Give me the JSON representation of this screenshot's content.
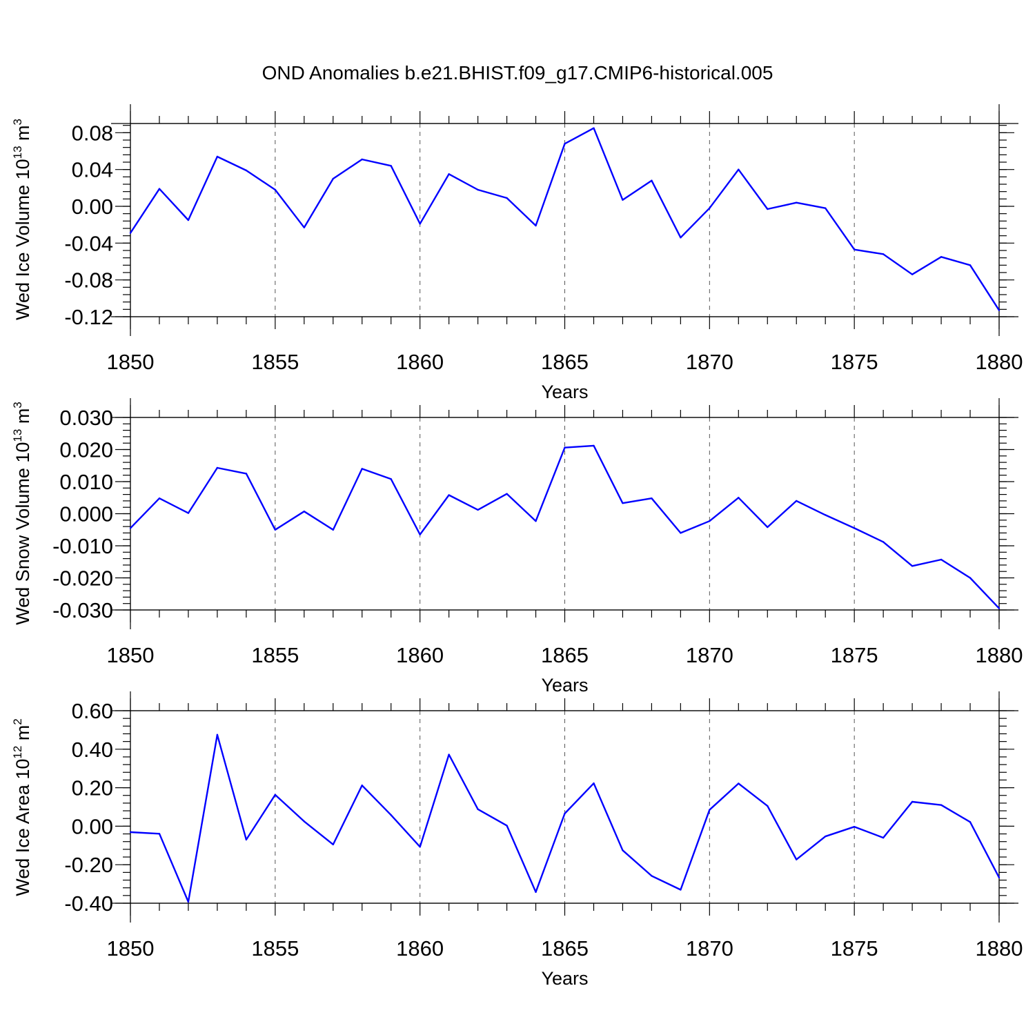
{
  "figure": {
    "title": "OND Anomalies b.e21.BHIST.f09_g17.CMIP6-historical.005"
  },
  "colors": {
    "line": "#0000ff",
    "axis": "#000000",
    "grid": "#555555"
  },
  "chart_data": [
    {
      "type": "line",
      "title": "",
      "xlabel": "Years",
      "ylabel": "Wed Ice Volume 10",
      "ylabel_exp": "13",
      "ylabel_unit": " m",
      "ylabel_unit_exp": "3",
      "xlim": [
        1850,
        1880
      ],
      "ylim": [
        -0.12,
        0.09
      ],
      "x_ticks": [
        1850,
        1855,
        1860,
        1865,
        1870,
        1875,
        1880
      ],
      "x_tick_labels": [
        "1850",
        "1855",
        "1860",
        "1865",
        "1870",
        "1875",
        "1880"
      ],
      "y_ticks": [
        -0.12,
        -0.08,
        -0.04,
        0.0,
        0.04,
        0.08
      ],
      "y_tick_labels": [
        "-0.12",
        "-0.08",
        "-0.04",
        "0.00",
        "0.04",
        "0.08"
      ],
      "grid": "dashed vertical at 5-year ticks",
      "x": [
        1850,
        1851,
        1852,
        1853,
        1854,
        1855,
        1856,
        1857,
        1858,
        1859,
        1860,
        1861,
        1862,
        1863,
        1864,
        1865,
        1866,
        1867,
        1868,
        1869,
        1870,
        1871,
        1872,
        1873,
        1874,
        1875,
        1876,
        1877,
        1878,
        1879,
        1880
      ],
      "series": [
        {
          "values": [
            -0.029,
            0.019,
            -0.015,
            0.054,
            0.039,
            0.018,
            -0.023,
            0.03,
            0.051,
            0.044,
            -0.019,
            0.035,
            0.018,
            0.009,
            -0.021,
            0.068,
            0.085,
            0.007,
            0.028,
            -0.034,
            -0.002,
            0.04,
            -0.003,
            0.004,
            -0.002,
            -0.047,
            -0.052,
            -0.074,
            -0.055,
            -0.064,
            -0.113
          ]
        }
      ]
    },
    {
      "type": "line",
      "title": "",
      "xlabel": "Years",
      "ylabel": "Wed Snow Volume 10",
      "ylabel_exp": "13",
      "ylabel_unit": " m",
      "ylabel_unit_exp": "3",
      "xlim": [
        1850,
        1880
      ],
      "ylim": [
        -0.03,
        0.03
      ],
      "x_ticks": [
        1850,
        1855,
        1860,
        1865,
        1870,
        1875,
        1880
      ],
      "x_tick_labels": [
        "1850",
        "1855",
        "1860",
        "1865",
        "1870",
        "1875",
        "1880"
      ],
      "y_ticks": [
        -0.03,
        -0.02,
        -0.01,
        0.0,
        0.01,
        0.02,
        0.03
      ],
      "y_tick_labels": [
        "-0.030",
        "-0.020",
        "-0.010",
        "0.000",
        "0.010",
        "0.020",
        "0.030"
      ],
      "grid": "dashed vertical at 5-year ticks",
      "x": [
        1850,
        1851,
        1852,
        1853,
        1854,
        1855,
        1856,
        1857,
        1858,
        1859,
        1860,
        1861,
        1862,
        1863,
        1864,
        1865,
        1866,
        1867,
        1868,
        1869,
        1870,
        1871,
        1872,
        1873,
        1874,
        1875,
        1876,
        1877,
        1878,
        1879,
        1880
      ],
      "series": [
        {
          "values": [
            -0.0045,
            0.0048,
            0.0002,
            0.0143,
            0.0125,
            -0.005,
            0.0007,
            -0.005,
            0.014,
            0.0108,
            -0.0065,
            0.0058,
            0.0012,
            0.0062,
            -0.0023,
            0.0206,
            0.0212,
            0.0033,
            0.0048,
            -0.006,
            -0.0023,
            0.005,
            -0.0042,
            0.004,
            -0.0004,
            -0.0045,
            -0.0088,
            -0.0163,
            -0.0143,
            -0.02,
            -0.0295
          ]
        }
      ]
    },
    {
      "type": "line",
      "title": "",
      "xlabel": "Years",
      "ylabel": "Wed Ice Area 10",
      "ylabel_exp": "12",
      "ylabel_unit": " m",
      "ylabel_unit_exp": "2",
      "xlim": [
        1850,
        1880
      ],
      "ylim": [
        -0.4,
        0.6
      ],
      "x_ticks": [
        1850,
        1855,
        1860,
        1865,
        1870,
        1875,
        1880
      ],
      "x_tick_labels": [
        "1850",
        "1855",
        "1860",
        "1865",
        "1870",
        "1875",
        "1880"
      ],
      "y_ticks": [
        -0.4,
        -0.2,
        0.0,
        0.2,
        0.4,
        0.6
      ],
      "y_tick_labels": [
        "-0.40",
        "-0.20",
        "0.00",
        "0.20",
        "0.40",
        "0.60"
      ],
      "grid": "dashed vertical at 5-year ticks",
      "x": [
        1850,
        1851,
        1852,
        1853,
        1854,
        1855,
        1856,
        1857,
        1858,
        1859,
        1860,
        1861,
        1862,
        1863,
        1864,
        1865,
        1866,
        1867,
        1868,
        1869,
        1870,
        1871,
        1872,
        1873,
        1874,
        1875,
        1876,
        1877,
        1878,
        1879,
        1880
      ],
      "series": [
        {
          "values": [
            -0.031,
            -0.039,
            -0.393,
            0.475,
            -0.07,
            0.163,
            0.025,
            -0.095,
            0.212,
            0.058,
            -0.107,
            0.372,
            0.088,
            0.003,
            -0.342,
            0.066,
            0.223,
            -0.125,
            -0.258,
            -0.33,
            0.085,
            0.222,
            0.105,
            -0.173,
            -0.053,
            -0.003,
            -0.06,
            0.127,
            0.11,
            0.022,
            -0.267
          ]
        }
      ]
    }
  ]
}
